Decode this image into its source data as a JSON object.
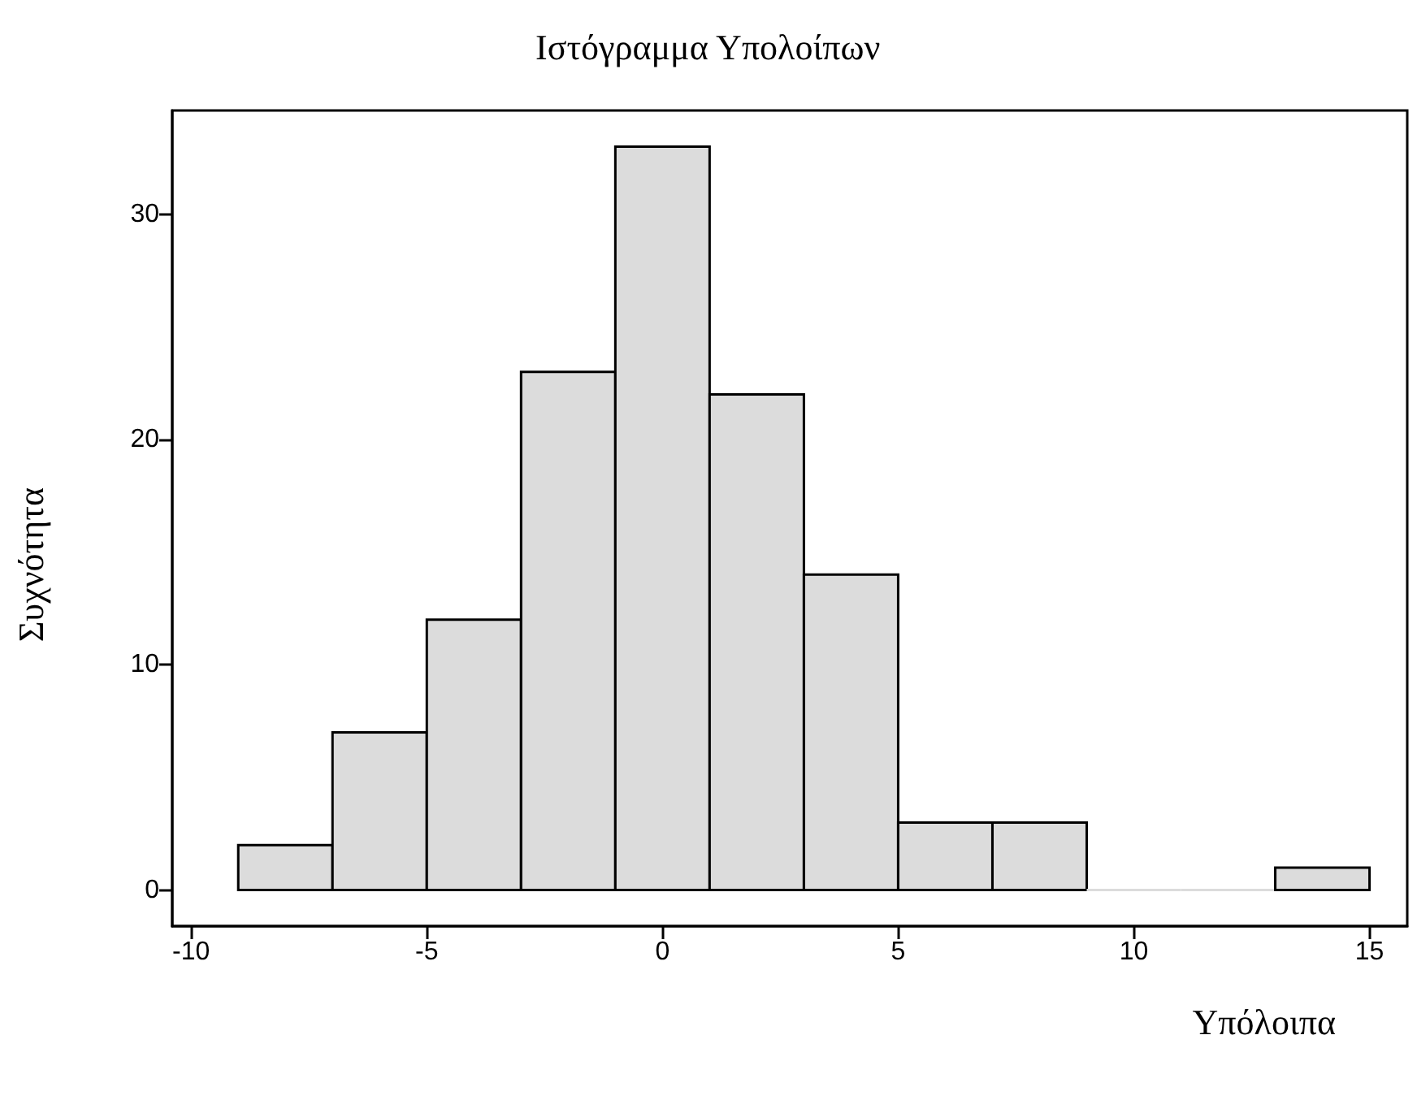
{
  "chart_data": {
    "type": "histogram",
    "title": "Ιστόγραμμα Υπολοίπων",
    "xlabel": "Υπόλοιπα",
    "ylabel": "Συχνότητα",
    "bins": [
      -9,
      -7,
      -5,
      -3,
      -1,
      1,
      3,
      5,
      7,
      9,
      11,
      13,
      15
    ],
    "values": [
      2,
      7,
      12,
      23,
      33,
      22,
      14,
      3,
      3,
      0,
      0,
      1
    ],
    "color": "#dcdcdc",
    "xlim": [
      -10.4,
      15.8
    ],
    "xticks": [
      -10,
      -5,
      0,
      5,
      10,
      15
    ],
    "ylim": [
      -1.6,
      34.6
    ],
    "yticks": [
      0,
      10,
      20,
      30
    ],
    "grid": false
  }
}
